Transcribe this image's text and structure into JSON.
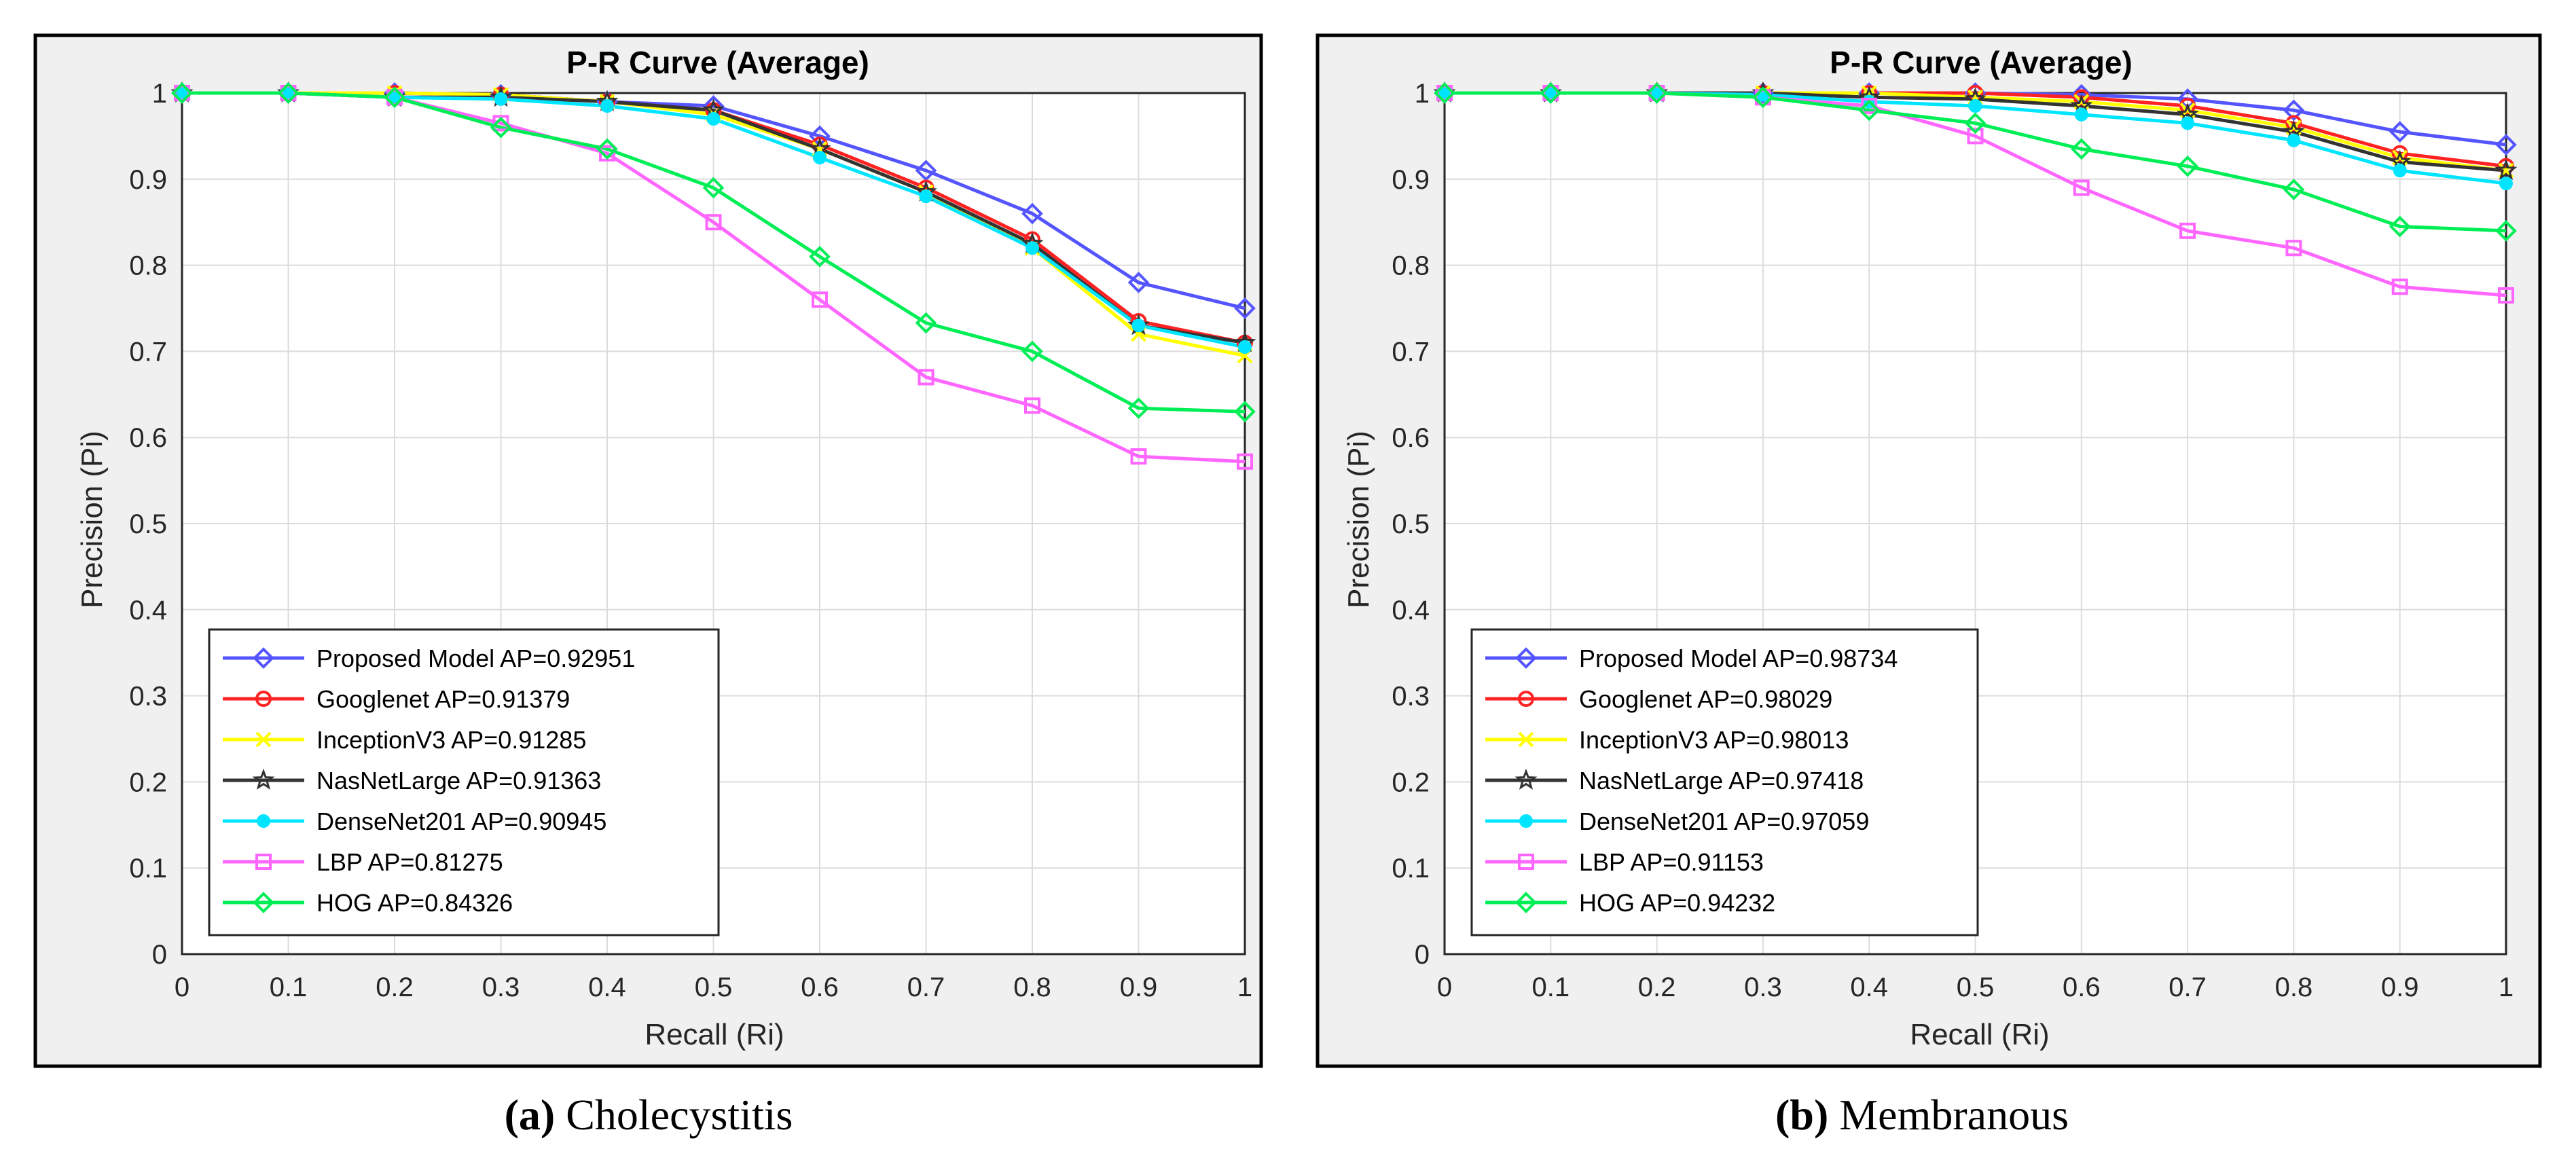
{
  "chart_data": [
    {
      "type": "line",
      "title": "P-R Curve (Average)",
      "xlabel": "Recall (Ri)",
      "ylabel": "Precision (Pi)",
      "xlim": [
        0,
        1
      ],
      "ylim": [
        0,
        1
      ],
      "grid": true,
      "legend_position": "bottom-left",
      "caption_label": "(a)",
      "caption_text": " Cholecystitis",
      "x": [
        0,
        0.1,
        0.2,
        0.3,
        0.4,
        0.5,
        0.6,
        0.7,
        0.8,
        0.9,
        1.0
      ],
      "xticks": [
        "0",
        "0.1",
        "0.2",
        "0.3",
        "0.4",
        "0.5",
        "0.6",
        "0.7",
        "0.8",
        "0.9",
        "1"
      ],
      "yticks": [
        "0",
        "0.1",
        "0.2",
        "0.3",
        "0.4",
        "0.5",
        "0.6",
        "0.7",
        "0.8",
        "0.9",
        "1"
      ],
      "series": [
        {
          "name": "Proposed Model AP=0.92951",
          "color": "#5555ff",
          "marker": "diamond",
          "values": [
            1.0,
            1.0,
            1.0,
            0.998,
            0.99,
            0.985,
            0.95,
            0.91,
            0.86,
            0.78,
            0.75
          ]
        },
        {
          "name": "Googlenet AP=0.91379",
          "color": "#ff2222",
          "marker": "circle",
          "values": [
            1.0,
            1.0,
            1.0,
            0.998,
            0.99,
            0.98,
            0.94,
            0.89,
            0.83,
            0.735,
            0.71
          ]
        },
        {
          "name": "InceptionV3 AP=0.91285",
          "color": "#ffff00",
          "marker": "x",
          "values": [
            1.0,
            1.0,
            1.0,
            0.998,
            0.99,
            0.975,
            0.935,
            0.885,
            0.82,
            0.72,
            0.695
          ]
        },
        {
          "name": "NasNetLarge AP=0.91363",
          "color": "#333333",
          "marker": "star",
          "values": [
            1.0,
            1.0,
            0.995,
            0.995,
            0.99,
            0.98,
            0.935,
            0.885,
            0.825,
            0.73,
            0.71
          ]
        },
        {
          "name": "DenseNet201 AP=0.90945",
          "color": "#00e5ff",
          "marker": "filled-circle",
          "values": [
            1.0,
            1.0,
            0.995,
            0.993,
            0.985,
            0.97,
            0.925,
            0.88,
            0.82,
            0.73,
            0.705
          ]
        },
        {
          "name": "LBP AP=0.81275",
          "color": "#ff66ff",
          "marker": "square",
          "values": [
            1.0,
            1.0,
            0.995,
            0.965,
            0.93,
            0.85,
            0.76,
            0.67,
            0.637,
            0.578,
            0.572
          ]
        },
        {
          "name": "HOG AP=0.84326",
          "color": "#00ee55",
          "marker": "diamond",
          "values": [
            1.0,
            1.0,
            0.995,
            0.96,
            0.935,
            0.89,
            0.81,
            0.733,
            0.7,
            0.634,
            0.63
          ]
        }
      ]
    },
    {
      "type": "line",
      "title": "P-R Curve (Average)",
      "xlabel": "Recall (Ri)",
      "ylabel": "Precision (Pi)",
      "xlim": [
        0,
        1
      ],
      "ylim": [
        0,
        1
      ],
      "grid": true,
      "legend_position": "bottom-left",
      "caption_label": "(b)",
      "caption_text": " Membranous",
      "x": [
        0,
        0.1,
        0.2,
        0.3,
        0.4,
        0.5,
        0.6,
        0.7,
        0.8,
        0.9,
        1.0
      ],
      "xticks": [
        "0",
        "0.1",
        "0.2",
        "0.3",
        "0.4",
        "0.5",
        "0.6",
        "0.7",
        "0.8",
        "0.9",
        "1"
      ],
      "yticks": [
        "0",
        "0.1",
        "0.2",
        "0.3",
        "0.4",
        "0.5",
        "0.6",
        "0.7",
        "0.8",
        "0.9",
        "1"
      ],
      "series": [
        {
          "name": "Proposed Model AP=0.98734",
          "color": "#5555ff",
          "marker": "diamond",
          "values": [
            1.0,
            1.0,
            1.0,
            1.0,
            1.0,
            1.0,
            0.998,
            0.993,
            0.98,
            0.955,
            0.94
          ]
        },
        {
          "name": "Googlenet AP=0.98029",
          "color": "#ff2222",
          "marker": "circle",
          "values": [
            1.0,
            1.0,
            1.0,
            1.0,
            1.0,
            1.0,
            0.995,
            0.985,
            0.965,
            0.93,
            0.915
          ]
        },
        {
          "name": "InceptionV3 AP=0.98013",
          "color": "#ffff00",
          "marker": "x",
          "values": [
            1.0,
            1.0,
            1.0,
            1.0,
            1.0,
            0.995,
            0.99,
            0.98,
            0.96,
            0.925,
            0.91
          ]
        },
        {
          "name": "NasNetLarge AP=0.97418",
          "color": "#333333",
          "marker": "star",
          "values": [
            1.0,
            1.0,
            1.0,
            1.0,
            0.995,
            0.993,
            0.985,
            0.975,
            0.955,
            0.92,
            0.91
          ]
        },
        {
          "name": "DenseNet201 AP=0.97059",
          "color": "#00e5ff",
          "marker": "filled-circle",
          "values": [
            1.0,
            1.0,
            1.0,
            0.998,
            0.99,
            0.985,
            0.975,
            0.965,
            0.945,
            0.91,
            0.895
          ]
        },
        {
          "name": "LBP AP=0.91153",
          "color": "#ff66ff",
          "marker": "square",
          "values": [
            1.0,
            1.0,
            1.0,
            0.995,
            0.985,
            0.95,
            0.89,
            0.84,
            0.82,
            0.775,
            0.765
          ]
        },
        {
          "name": "HOG AP=0.94232",
          "color": "#00ee55",
          "marker": "diamond",
          "values": [
            1.0,
            1.0,
            1.0,
            0.995,
            0.98,
            0.965,
            0.935,
            0.915,
            0.888,
            0.845,
            0.84
          ]
        }
      ]
    }
  ]
}
